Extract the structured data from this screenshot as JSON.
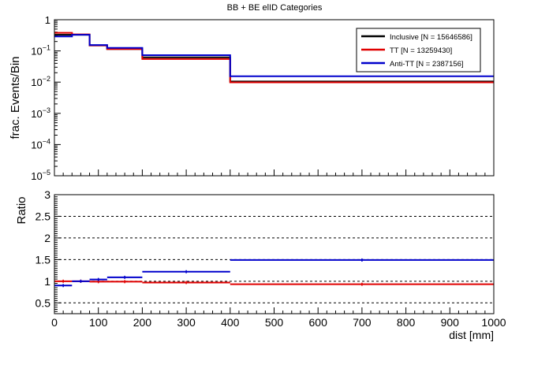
{
  "chart_data": [
    {
      "type": "line",
      "title": "BB + BE elID Categories",
      "ylabel": "frac. Events/Bin",
      "xlabel": "",
      "y_scale": "log",
      "ylim": [
        1e-05,
        1
      ],
      "xlim": [
        0,
        1000
      ],
      "ytick_labels": [
        {
          "value": 1,
          "base": "1",
          "exp": ""
        },
        {
          "value": 0.1,
          "base": "10",
          "exp": "−1"
        },
        {
          "value": 0.01,
          "base": "10",
          "exp": "−2"
        },
        {
          "value": 0.001,
          "base": "10",
          "exp": "−3"
        },
        {
          "value": 0.0001,
          "base": "10",
          "exp": "−4"
        },
        {
          "value": 1e-05,
          "base": "10",
          "exp": "−5"
        }
      ],
      "bin_edges": [
        0,
        40,
        80,
        120,
        200,
        400,
        1000
      ],
      "legend_position": "top-right",
      "series": [
        {
          "name": "Inclusive [N = 15646586]",
          "color": "#000000",
          "values": [
            0.33,
            0.33,
            0.15,
            0.115,
            0.062,
            0.0105
          ]
        },
        {
          "name": "TT [N = 13259430]",
          "color": "#e00000",
          "values": [
            0.38,
            0.34,
            0.15,
            0.115,
            0.055,
            0.0098
          ]
        },
        {
          "name": "Anti-TT [N = 2387156]",
          "color": "#0000cc",
          "values": [
            0.29,
            0.33,
            0.155,
            0.125,
            0.073,
            0.0155
          ]
        }
      ]
    },
    {
      "type": "line",
      "title": "",
      "ylabel": "Ratio",
      "xlabel": "dist [mm]",
      "ylim": [
        0.25,
        3
      ],
      "xlim": [
        0,
        1000
      ],
      "yticks": [
        "0.5",
        "1",
        "1.5",
        "2",
        "2.5",
        "3"
      ],
      "xticks": [
        "0",
        "100",
        "200",
        "300",
        "400",
        "500",
        "600",
        "700",
        "800",
        "900",
        "1000"
      ],
      "dashed_reference_lines": [
        0.5,
        1,
        1.5,
        2,
        2.5
      ],
      "bin_edges": [
        0,
        40,
        80,
        120,
        200,
        400,
        1000
      ],
      "series": [
        {
          "name": "TT",
          "color": "#e00000",
          "values": [
            1.0,
            1.0,
            0.99,
            0.99,
            0.97,
            0.93
          ]
        },
        {
          "name": "Anti-TT",
          "color": "#0000cc",
          "values": [
            0.9,
            1.0,
            1.04,
            1.09,
            1.22,
            1.49
          ]
        }
      ]
    }
  ]
}
